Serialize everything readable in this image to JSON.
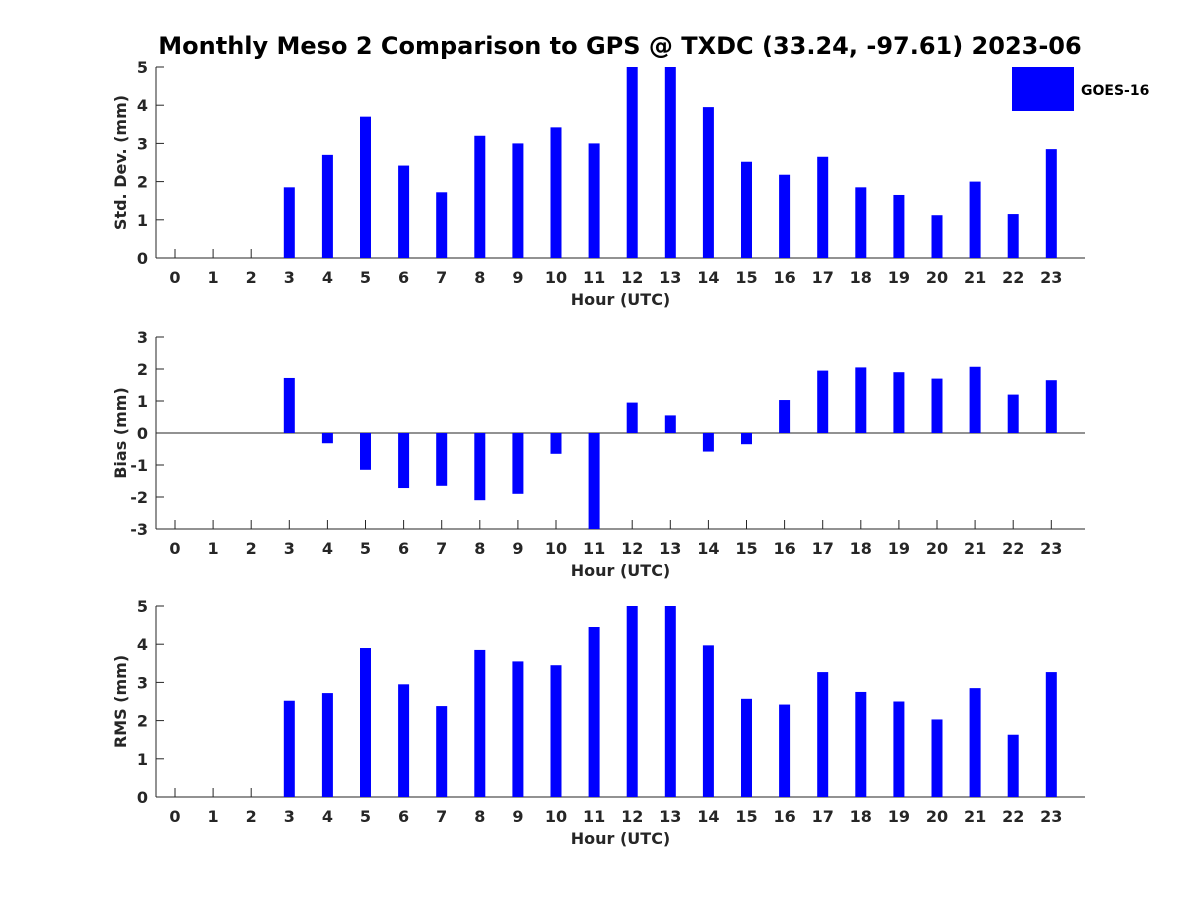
{
  "title": "Monthly Meso 2 Comparison to GPS @ TXDC (33.24, -97.61) 2023-06",
  "colors": {
    "bar": "#0000ff",
    "axis": "#262626",
    "text": "#000000"
  },
  "chart_data": [
    {
      "type": "bar",
      "categories": [
        "0",
        "1",
        "2",
        "3",
        "4",
        "5",
        "6",
        "7",
        "8",
        "9",
        "10",
        "11",
        "12",
        "13",
        "14",
        "15",
        "16",
        "17",
        "18",
        "19",
        "20",
        "21",
        "22",
        "23"
      ],
      "series": [
        {
          "name": "GOES-16",
          "values": [
            null,
            null,
            null,
            1.85,
            2.7,
            3.7,
            2.42,
            1.72,
            3.2,
            3.0,
            3.42,
            3.0,
            5.0,
            5.0,
            3.95,
            2.52,
            2.18,
            2.65,
            1.85,
            1.65,
            1.12,
            2.0,
            1.15,
            2.85
          ]
        }
      ],
      "xlabel": "Hour (UTC)",
      "ylabel": "Std. Dev. (mm)",
      "ylim": [
        0,
        5
      ],
      "yticks": [
        0,
        1,
        2,
        3,
        4,
        5
      ],
      "legend": {
        "entries": [
          "GOES-16"
        ],
        "position": "top-right, outside plot"
      },
      "grid": false
    },
    {
      "type": "bar",
      "categories": [
        "0",
        "1",
        "2",
        "3",
        "4",
        "5",
        "6",
        "7",
        "8",
        "9",
        "10",
        "11",
        "12",
        "13",
        "14",
        "15",
        "16",
        "17",
        "18",
        "19",
        "20",
        "21",
        "22",
        "23"
      ],
      "series": [
        {
          "name": "GOES-16",
          "values": [
            null,
            null,
            null,
            1.72,
            -0.32,
            -1.15,
            -1.72,
            -1.65,
            -2.1,
            -1.9,
            -0.65,
            -3.0,
            0.95,
            0.55,
            -0.58,
            -0.35,
            1.03,
            1.95,
            2.05,
            1.9,
            1.7,
            2.07,
            1.2,
            1.65
          ]
        }
      ],
      "xlabel": "Hour (UTC)",
      "ylabel": "Bias (mm)",
      "ylim": [
        -3,
        3
      ],
      "yticks": [
        -3,
        -2,
        -1,
        0,
        1,
        2,
        3
      ],
      "zero_line": true,
      "grid": false
    },
    {
      "type": "bar",
      "categories": [
        "0",
        "1",
        "2",
        "3",
        "4",
        "5",
        "6",
        "7",
        "8",
        "9",
        "10",
        "11",
        "12",
        "13",
        "14",
        "15",
        "16",
        "17",
        "18",
        "19",
        "20",
        "21",
        "22",
        "23"
      ],
      "series": [
        {
          "name": "GOES-16",
          "values": [
            null,
            null,
            null,
            2.52,
            2.72,
            3.9,
            2.95,
            2.38,
            3.85,
            3.55,
            3.45,
            4.45,
            5.0,
            5.0,
            3.97,
            2.57,
            2.42,
            3.27,
            2.75,
            2.5,
            2.03,
            2.85,
            1.63,
            3.27
          ]
        }
      ],
      "xlabel": "Hour (UTC)",
      "ylabel": "RMS (mm)",
      "ylim": [
        0,
        5
      ],
      "yticks": [
        0,
        1,
        2,
        3,
        4,
        5
      ],
      "grid": false
    }
  ]
}
